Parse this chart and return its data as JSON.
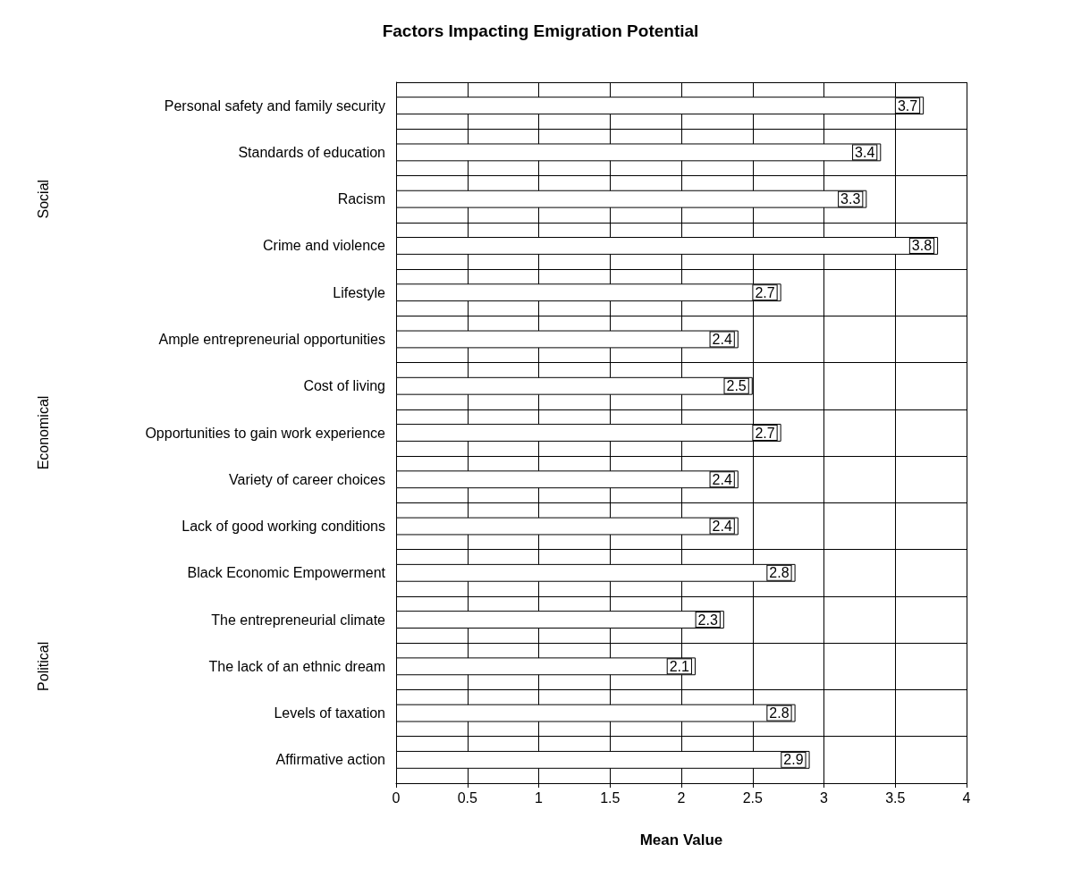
{
  "chart_data": {
    "type": "bar",
    "orientation": "horizontal",
    "title": "Factors Impacting Emigration Potential",
    "xlabel": "Mean Value",
    "categories": [
      "Personal safety and family security",
      "Standards of education",
      "Racism",
      "Crime and violence",
      "Lifestyle",
      "Ample entrepreneurial opportunities",
      "Cost of living",
      "Opportunities to gain work experience",
      "Variety of career choices",
      "Lack of good working conditions",
      "Black Economic Empowerment",
      "The entrepreneurial climate",
      "The lack of an ethnic dream",
      "Levels of taxation",
      "Affirmative action"
    ],
    "values": [
      3.7,
      3.4,
      3.3,
      3.8,
      2.7,
      2.4,
      2.5,
      2.7,
      2.4,
      2.4,
      2.8,
      2.3,
      2.1,
      2.8,
      2.9
    ],
    "color": "#ffffff",
    "data_labels": true,
    "grid": true,
    "xlim": [
      0,
      4
    ],
    "xticks": [
      0,
      0.5,
      1,
      1.5,
      2,
      2.5,
      3,
      3.5,
      4
    ],
    "annotations": [
      "Social",
      "Economical",
      "Political"
    ]
  }
}
